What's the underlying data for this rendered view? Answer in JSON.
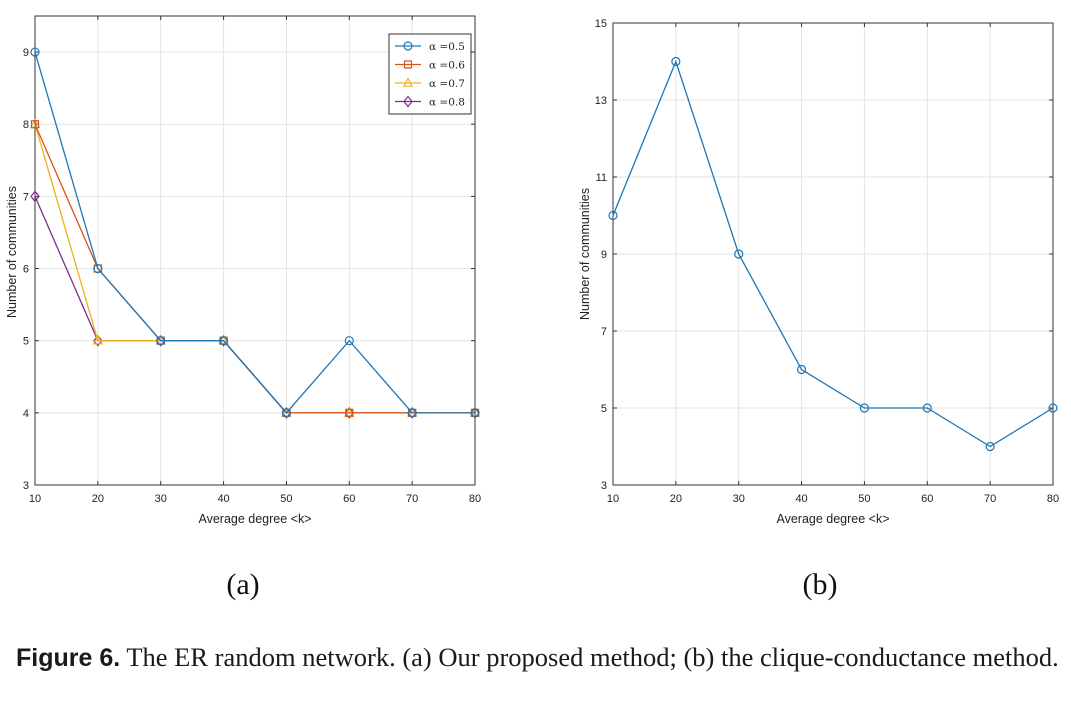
{
  "chart_data": [
    {
      "type": "line",
      "panel_label": "(a)",
      "xlabel": "Average degree <k>",
      "ylabel": "Number of communities",
      "xlim": [
        10,
        80
      ],
      "ylim": [
        3,
        9.5
      ],
      "xticks": [
        10,
        20,
        30,
        40,
        50,
        60,
        70,
        80
      ],
      "yticks": [
        3,
        4,
        5,
        6,
        7,
        8,
        9
      ],
      "grid": true,
      "legend_position": "top-right",
      "series": [
        {
          "name": "α =0.5",
          "color": "#1f77b4",
          "marker": "circle",
          "x": [
            10,
            20,
            30,
            40,
            50,
            60,
            70,
            80
          ],
          "y": [
            9,
            6,
            5,
            5,
            4,
            5,
            4,
            4
          ]
        },
        {
          "name": "α =0.6",
          "color": "#d95319",
          "marker": "square",
          "x": [
            10,
            20,
            30,
            40,
            50,
            60,
            70,
            80
          ],
          "y": [
            8,
            6,
            5,
            5,
            4,
            4,
            4,
            4
          ]
        },
        {
          "name": "α =0.7",
          "color": "#edb120",
          "marker": "triangle",
          "x": [
            10,
            20,
            30,
            40,
            50,
            60,
            70,
            80
          ],
          "y": [
            8,
            5,
            5,
            5,
            4,
            4,
            4,
            4
          ]
        },
        {
          "name": "α =0.8",
          "color": "#7e2f8e",
          "marker": "diamond",
          "x": [
            10,
            20,
            30,
            40,
            50,
            60,
            70,
            80
          ],
          "y": [
            7,
            5,
            5,
            5,
            4,
            4,
            4,
            4
          ]
        }
      ]
    },
    {
      "type": "line",
      "panel_label": "(b)",
      "xlabel": "Average degree <k>",
      "ylabel": "Number of communities",
      "xlim": [
        10,
        80
      ],
      "ylim": [
        3,
        15
      ],
      "xticks": [
        10,
        20,
        30,
        40,
        50,
        60,
        70,
        80
      ],
      "yticks": [
        3,
        5,
        7,
        9,
        11,
        13,
        15
      ],
      "grid": true,
      "series": [
        {
          "color": "#1f77b4",
          "marker": "circle",
          "x": [
            10,
            20,
            30,
            40,
            50,
            60,
            70,
            80
          ],
          "y": [
            10,
            14,
            9,
            6,
            5,
            5,
            4,
            5
          ]
        }
      ]
    }
  ],
  "caption": {
    "prefix": "Figure 6.",
    "text": "The ER random network. (a) Our proposed method; (b) the clique-conductance method."
  }
}
